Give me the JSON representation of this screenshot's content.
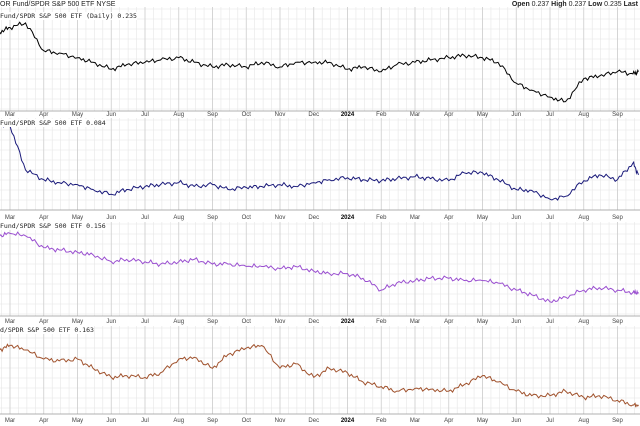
{
  "header": {
    "symbol_title": "OR Fund/SPDR S&P 500 ETF",
    "exchange": "NYSE",
    "open_label": "Open",
    "open": "0.237",
    "high_label": "High",
    "high": "0.237",
    "low_label": "Low",
    "low": "0.235",
    "last_label": "Last"
  },
  "chart_data": {
    "type": "line",
    "x": [
      "2023-02-22",
      "2023-03-01",
      "2023-03-15",
      "2023-04-01",
      "2023-04-15",
      "2023-05-01",
      "2023-05-15",
      "2023-06-01",
      "2023-06-15",
      "2023-07-01",
      "2023-07-15",
      "2023-08-01",
      "2023-08-15",
      "2023-09-01",
      "2023-09-15",
      "2023-10-01",
      "2023-10-15",
      "2023-11-01",
      "2023-11-15",
      "2023-12-01",
      "2023-12-15",
      "2024-01-01",
      "2024-01-15",
      "2024-02-01",
      "2024-02-15",
      "2024-03-01",
      "2024-03-15",
      "2024-04-01",
      "2024-04-15",
      "2024-05-01",
      "2024-05-15",
      "2024-06-01",
      "2024-06-15",
      "2024-07-01",
      "2024-07-15",
      "2024-08-01",
      "2024-08-15",
      "2024-09-01",
      "2024-09-15",
      "2024-09-20"
    ],
    "x_ticks": [
      "Mar",
      "Apr",
      "May",
      "Jun",
      "Jul",
      "Aug",
      "Sep",
      "Oct",
      "Nov",
      "Dec",
      "2024",
      "Feb",
      "Mar",
      "Apr",
      "May",
      "Jun",
      "Jul",
      "Aug",
      "Sep"
    ],
    "grid": true,
    "series": [
      {
        "name": "Fund/SPDR S&P 500 ETF (Daily)",
        "last": "0.235",
        "color": "#000000",
        "ylim": [
          0.218,
          0.262
        ],
        "values": [
          0.252,
          0.254,
          0.256,
          0.244,
          0.243,
          0.241,
          0.239,
          0.236,
          0.238,
          0.239,
          0.24,
          0.241,
          0.239,
          0.237,
          0.238,
          0.237,
          0.239,
          0.237,
          0.239,
          0.239,
          0.239,
          0.236,
          0.237,
          0.235,
          0.238,
          0.239,
          0.24,
          0.241,
          0.242,
          0.241,
          0.239,
          0.23,
          0.227,
          0.224,
          0.222,
          0.232,
          0.233,
          0.235,
          0.234,
          0.235
        ]
      },
      {
        "name": "Fund/SPDR S&P 500 ETF",
        "last": "0.084",
        "color": "#1a1a7a",
        "ylim": [
          0.066,
          0.112
        ],
        "values": [
          0.11,
          0.109,
          0.0865,
          0.0815,
          0.08,
          0.079,
          0.0765,
          0.074,
          0.0765,
          0.078,
          0.079,
          0.08,
          0.078,
          0.079,
          0.0765,
          0.0775,
          0.078,
          0.079,
          0.078,
          0.08,
          0.0815,
          0.0825,
          0.0815,
          0.081,
          0.082,
          0.083,
          0.082,
          0.081,
          0.085,
          0.085,
          0.0815,
          0.0765,
          0.076,
          0.0715,
          0.073,
          0.081,
          0.084,
          0.0815,
          0.09,
          0.084
        ]
      },
      {
        "name": "Fund/SPDR S&P 500 ETF",
        "last": "0.156",
        "color": "#9a4fd0",
        "ylim": [
          0.146,
          0.185
        ],
        "values": [
          0.18,
          0.181,
          0.18,
          0.175,
          0.174,
          0.173,
          0.172,
          0.169,
          0.17,
          0.169,
          0.168,
          0.169,
          0.17,
          0.168,
          0.168,
          0.167,
          0.167,
          0.166,
          0.167,
          0.165,
          0.164,
          0.164,
          0.162,
          0.157,
          0.16,
          0.161,
          0.162,
          0.162,
          0.161,
          0.161,
          0.16,
          0.157,
          0.155,
          0.152,
          0.154,
          0.157,
          0.158,
          0.157,
          0.156,
          0.156
        ]
      },
      {
        "name": "Fund/SPDR S&P 500 ETF",
        "last": "0.163",
        "color": "#a0522d",
        "ylim": [
          0.158,
          0.205
        ],
        "values": [
          0.193,
          0.1955,
          0.193,
          0.188,
          0.187,
          0.188,
          0.183,
          0.178,
          0.179,
          0.178,
          0.1805,
          0.188,
          0.189,
          0.183,
          0.1905,
          0.194,
          0.1955,
          0.183,
          0.1855,
          0.178,
          0.183,
          0.1805,
          0.1755,
          0.173,
          0.1705,
          0.172,
          0.1715,
          0.1705,
          0.174,
          0.179,
          0.1755,
          0.1705,
          0.168,
          0.168,
          0.1705,
          0.167,
          0.168,
          0.1655,
          0.163,
          0.163
        ]
      }
    ],
    "panel_titles": [
      "Fund/SPDR S&P 500 ETF (Daily) 0.235",
      "Fund/SPDR S&P 500 ETF 0.084",
      "Fund/SPDR S&P 500 ETF 0.156",
      "d/SPDR S&P 500 ETF 0.163"
    ]
  }
}
